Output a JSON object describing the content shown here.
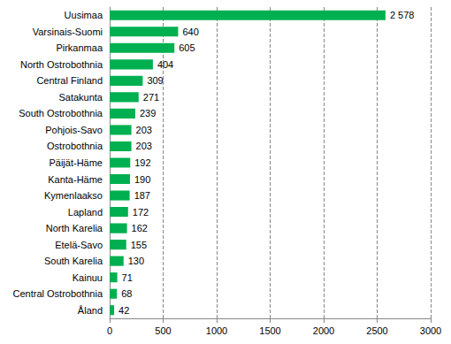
{
  "chart_data": {
    "type": "bar",
    "orientation": "horizontal",
    "categories": [
      "Uusimaa",
      "Varsinais-Suomi",
      "Pirkanmaa",
      "North Ostrobothnia",
      "Central Finland",
      "Satakunta",
      "South Ostrobothnia",
      "Pohjois-Savo",
      "Ostrobothnia",
      "Päijät-Häme",
      "Kanta-Häme",
      "Kymenlaakso",
      "Lapland",
      "North Karelia",
      "Etelä-Savo",
      "South Karelia",
      "Kainuu",
      "Central Ostrobothnia",
      "Åland"
    ],
    "values": [
      2578,
      640,
      605,
      404,
      309,
      271,
      239,
      203,
      203,
      192,
      190,
      187,
      172,
      162,
      155,
      130,
      71,
      68,
      42
    ],
    "value_labels": [
      "2 578",
      "640",
      "605",
      "404",
      "309",
      "271",
      "239",
      "203",
      "203",
      "192",
      "190",
      "187",
      "172",
      "162",
      "155",
      "130",
      "71",
      "68",
      "42"
    ],
    "color": "#00b050",
    "xlim": [
      0,
      3000
    ],
    "xticks": [
      0,
      500,
      1000,
      1500,
      2000,
      2500,
      3000
    ],
    "grid": true,
    "data_labels": true
  }
}
